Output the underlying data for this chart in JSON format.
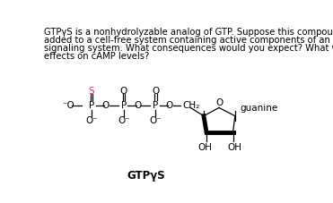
{
  "background_color": "#ffffff",
  "text_color": "#000000",
  "sulfur_color": "#ff1a8c",
  "paragraph_lines": [
    "GTPγS is a nonhydrolyzable analog of GTP. Suppose this compound were",
    "added to a cell-free system containing active components of an adrenergic",
    "signaling system. What consequences would you expect? What would be the",
    "effects on cAMP levels?"
  ],
  "label_gtpys": "GTPγS",
  "label_guanine": "guanine",
  "font_size_para": 7.2,
  "font_size_chem": 7.5,
  "font_size_label": 8.5
}
